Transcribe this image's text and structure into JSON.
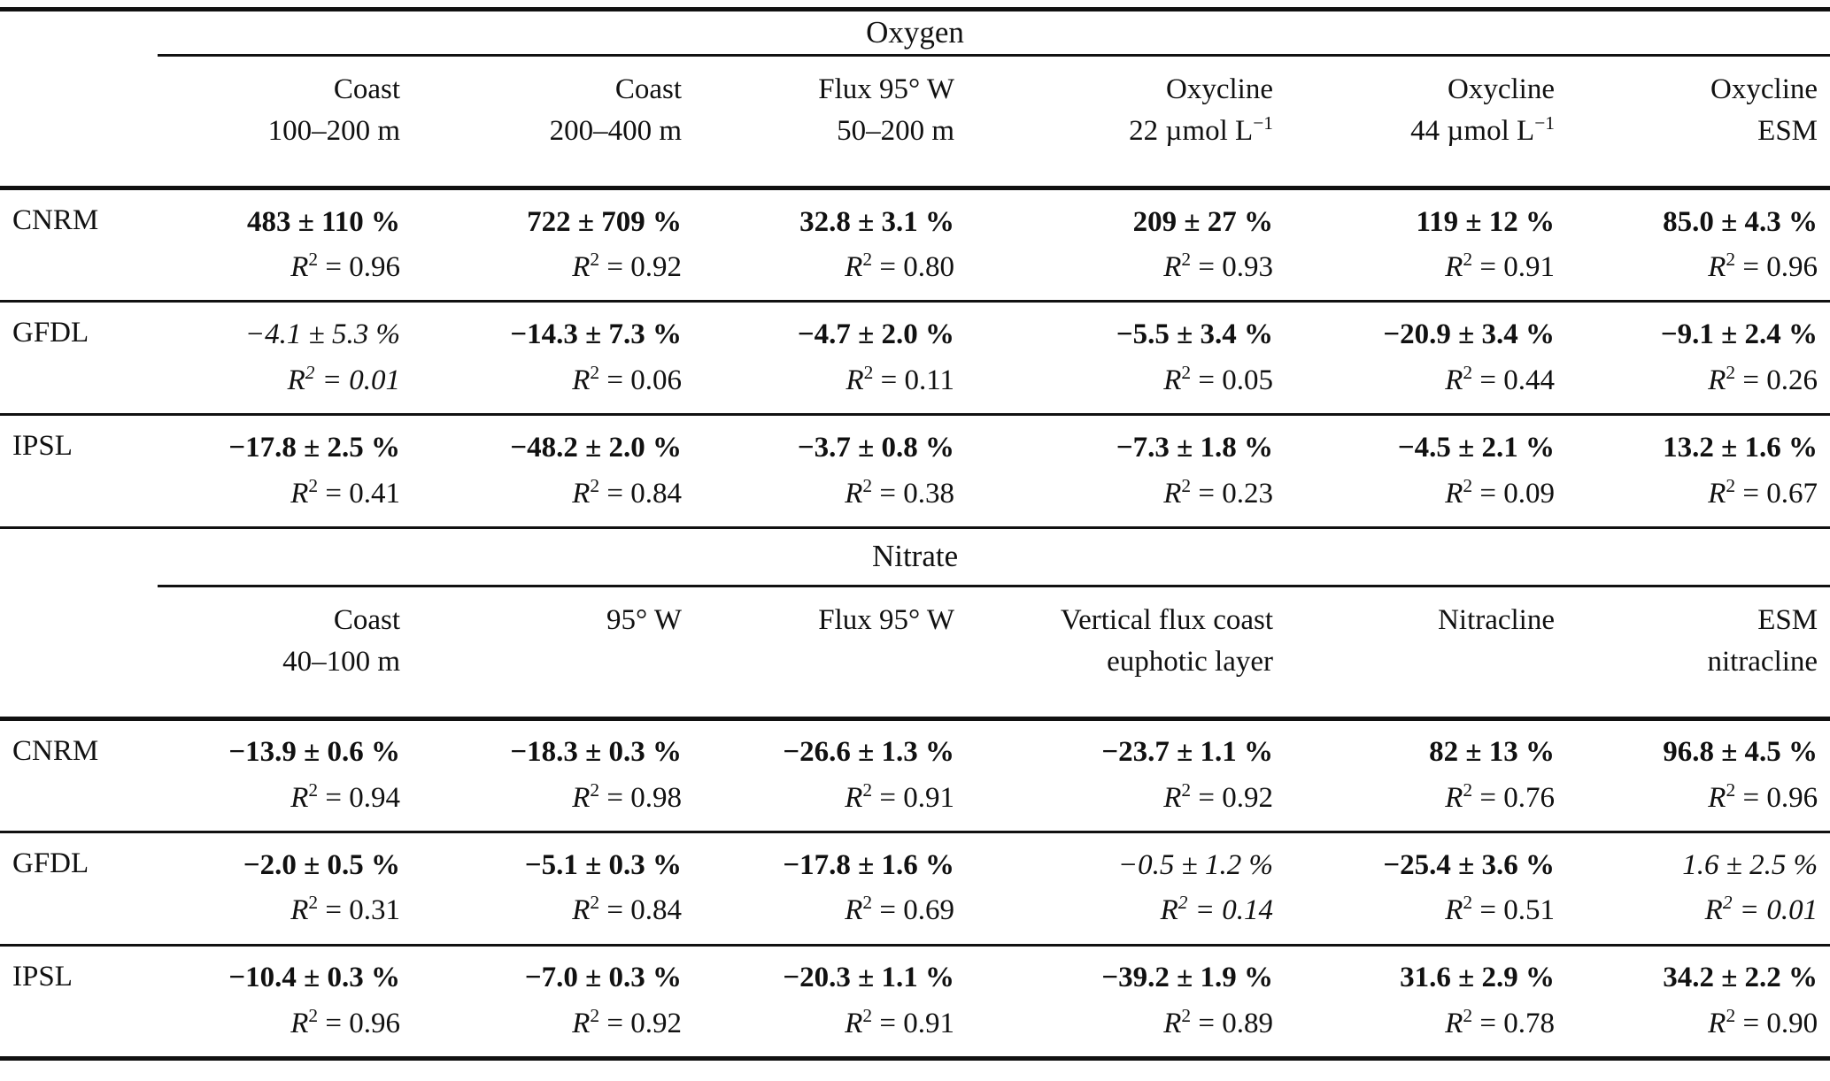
{
  "r2_notation": {
    "symbol": "R",
    "exponent": "2",
    "equals": "="
  },
  "sections": [
    {
      "title": "Oxygen",
      "columns": [
        {
          "line1": "Coast",
          "line2": "100–200 m"
        },
        {
          "line1": "Coast",
          "line2": "200–400 m"
        },
        {
          "line1": "Flux 95° W",
          "line2": "50–200 m"
        },
        {
          "line1": "Oxycline",
          "line2": "22 µmol L",
          "line2_sup": "−1"
        },
        {
          "line1": "Oxycline",
          "line2": "44 µmol L",
          "line2_sup": "−1"
        },
        {
          "line1": "Oxycline",
          "line2": "ESM"
        }
      ],
      "rows": [
        {
          "model": "CNRM",
          "cells": [
            {
              "value": "483 ± 110 %",
              "r2": "0.96",
              "style": "bold"
            },
            {
              "value": "722 ± 709 %",
              "r2": "0.92",
              "style": "bold"
            },
            {
              "value": "32.8 ± 3.1 %",
              "r2": "0.80",
              "style": "bold"
            },
            {
              "value": "209 ± 27 %",
              "r2": "0.93",
              "style": "bold"
            },
            {
              "value": "119 ± 12 %",
              "r2": "0.91",
              "style": "bold"
            },
            {
              "value": "85.0 ± 4.3 %",
              "r2": "0.96",
              "style": "bold"
            }
          ]
        },
        {
          "model": "GFDL",
          "cells": [
            {
              "value": "−4.1 ± 5.3 %",
              "r2": "0.01",
              "style": "italic"
            },
            {
              "value": "−14.3 ± 7.3 %",
              "r2": "0.06",
              "style": "bold"
            },
            {
              "value": "−4.7 ± 2.0 %",
              "r2": "0.11",
              "style": "bold"
            },
            {
              "value": "−5.5 ± 3.4 %",
              "r2": "0.05",
              "style": "bold"
            },
            {
              "value": "−20.9 ± 3.4 %",
              "r2": "0.44",
              "style": "bold"
            },
            {
              "value": "−9.1 ± 2.4 %",
              "r2": "0.26",
              "style": "bold"
            }
          ]
        },
        {
          "model": "IPSL",
          "cells": [
            {
              "value": "−17.8 ± 2.5 %",
              "r2": "0.41",
              "style": "bold"
            },
            {
              "value": "−48.2 ± 2.0 %",
              "r2": "0.84",
              "style": "bold"
            },
            {
              "value": "−3.7 ± 0.8 %",
              "r2": "0.38",
              "style": "bold"
            },
            {
              "value": "−7.3 ± 1.8 %",
              "r2": "0.23",
              "style": "bold"
            },
            {
              "value": "−4.5 ± 2.1 %",
              "r2": "0.09",
              "style": "bold"
            },
            {
              "value": "13.2 ± 1.6 %",
              "r2": "0.67",
              "style": "bold"
            }
          ]
        }
      ]
    },
    {
      "title": "Nitrate",
      "columns": [
        {
          "line1": "Coast",
          "line2": "40–100 m"
        },
        {
          "line1": "95° W",
          "line2": ""
        },
        {
          "line1": "Flux 95° W",
          "line2": ""
        },
        {
          "line1": "Vertical flux coast",
          "line2": "euphotic layer"
        },
        {
          "line1": "Nitracline",
          "line2": ""
        },
        {
          "line1": "ESM",
          "line2": "nitracline"
        }
      ],
      "rows": [
        {
          "model": "CNRM",
          "cells": [
            {
              "value": "−13.9 ± 0.6 %",
              "r2": "0.94",
              "style": "bold"
            },
            {
              "value": "−18.3 ± 0.3 %",
              "r2": "0.98",
              "style": "bold"
            },
            {
              "value": "−26.6 ± 1.3 %",
              "r2": "0.91",
              "style": "bold"
            },
            {
              "value": "−23.7 ± 1.1 %",
              "r2": "0.92",
              "style": "bold"
            },
            {
              "value": "82 ± 13 %",
              "r2": "0.76",
              "style": "bold"
            },
            {
              "value": "96.8 ± 4.5 %",
              "r2": "0.96",
              "style": "bold"
            }
          ]
        },
        {
          "model": "GFDL",
          "cells": [
            {
              "value": "−2.0 ± 0.5 %",
              "r2": "0.31",
              "style": "bold"
            },
            {
              "value": "−5.1 ± 0.3 %",
              "r2": "0.84",
              "style": "bold"
            },
            {
              "value": "−17.8 ± 1.6 %",
              "r2": "0.69",
              "style": "bold"
            },
            {
              "value": "−0.5 ± 1.2 %",
              "r2": "0.14",
              "style": "italic"
            },
            {
              "value": "−25.4 ± 3.6 %",
              "r2": "0.51",
              "style": "bold"
            },
            {
              "value": "1.6 ± 2.5 %",
              "r2": "0.01",
              "style": "italic"
            }
          ]
        },
        {
          "model": "IPSL",
          "cells": [
            {
              "value": "−10.4 ± 0.3 %",
              "r2": "0.96",
              "style": "bold"
            },
            {
              "value": "−7.0 ± 0.3 %",
              "r2": "0.92",
              "style": "bold"
            },
            {
              "value": "−20.3 ± 1.1 %",
              "r2": "0.91",
              "style": "bold"
            },
            {
              "value": "−39.2 ± 1.9 %",
              "r2": "0.89",
              "style": "bold"
            },
            {
              "value": "31.6 ± 2.9 %",
              "r2": "0.78",
              "style": "bold"
            },
            {
              "value": "34.2 ± 2.2 %",
              "r2": "0.90",
              "style": "bold"
            }
          ]
        }
      ]
    }
  ]
}
